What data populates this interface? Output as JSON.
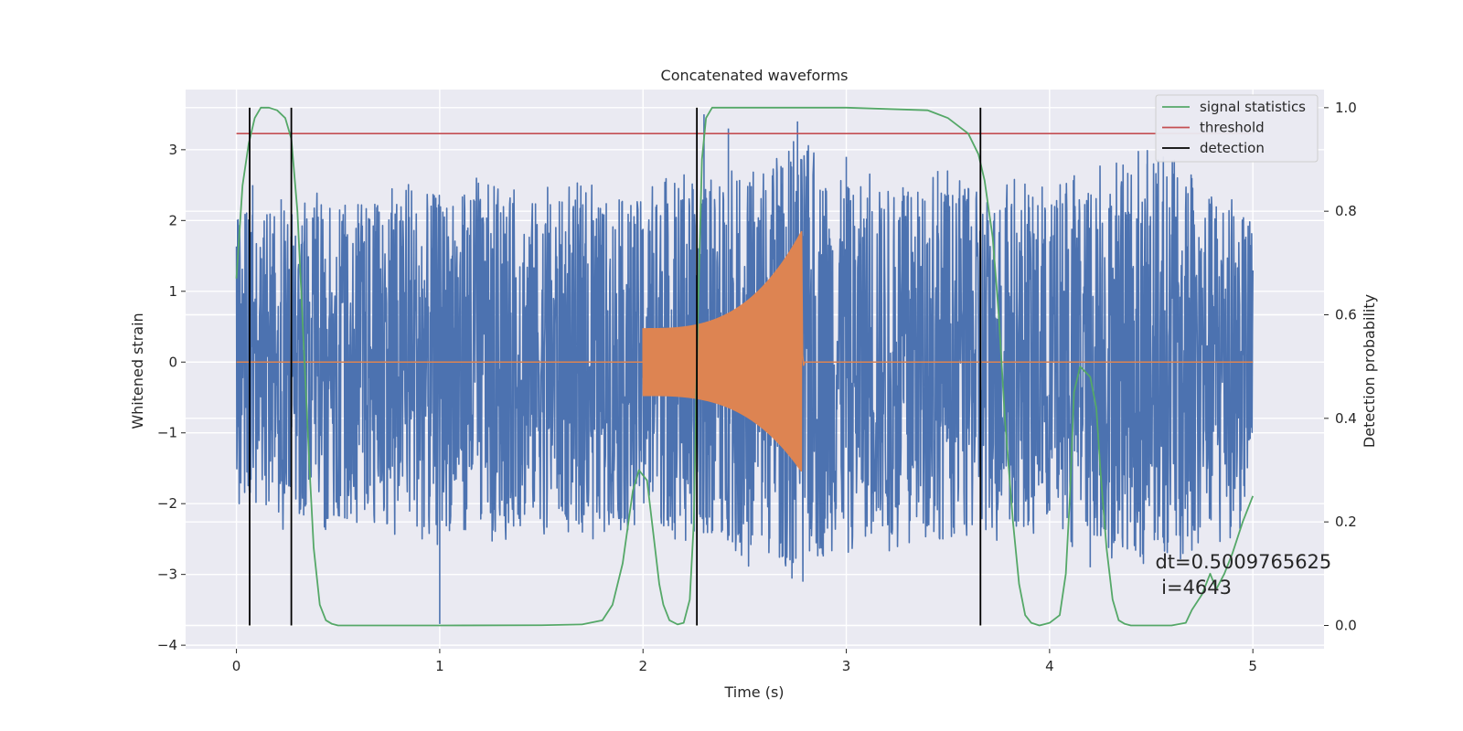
{
  "chart_data": {
    "type": "line",
    "title": "Concatenated waveforms",
    "xlabel": "Time (s)",
    "ylabel": "Whitened strain",
    "y2label": "Detection probability",
    "xlim": [
      -0.25,
      5.35
    ],
    "ylim": [
      -4.05,
      3.85
    ],
    "y2lim": [
      -0.045,
      1.035
    ],
    "xticks": [
      "0",
      "1",
      "2",
      "3",
      "4",
      "5"
    ],
    "xtick_values": [
      0,
      1,
      2,
      3,
      4,
      5
    ],
    "yticks": [
      "−4",
      "−3",
      "−2",
      "−1",
      "0",
      "1",
      "2",
      "3"
    ],
    "ytick_values": [
      -4,
      -3,
      -2,
      -1,
      0,
      1,
      2,
      3
    ],
    "y2ticks": [
      "0.0",
      "0.2",
      "0.4",
      "0.6",
      "0.8",
      "1.0"
    ],
    "y2tick_values": [
      0,
      0.2,
      0.4,
      0.6,
      0.8,
      1.0
    ],
    "grid": true,
    "legend_position": "top-right",
    "colors": {
      "background": "#eaeaf2",
      "noise": "#4c72b0",
      "waveform": "#dd8452",
      "signal_statistics": "#55a868",
      "threshold": "#c44e52",
      "detection": "#000000"
    },
    "series": [
      {
        "name": "noise (whitened strain)",
        "axis": "left",
        "style": "noise",
        "x_range": [
          0,
          5
        ],
        "envelope": [
          [
            0,
            2.1
          ],
          [
            0.5,
            2.2
          ],
          [
            1,
            2.4
          ],
          [
            1.5,
            2.3
          ],
          [
            2,
            2.3
          ],
          [
            2.5,
            2.6
          ],
          [
            2.8,
            3.0
          ],
          [
            3,
            2.5
          ],
          [
            3.5,
            2.5
          ],
          [
            4,
            2.3
          ],
          [
            4.5,
            2.8
          ],
          [
            5,
            2.1
          ]
        ],
        "peaks": [
          [
            0.08,
            2.5
          ],
          [
            0.22,
            2.3
          ],
          [
            1.0,
            -3.7
          ],
          [
            2.3,
            3.5
          ],
          [
            2.42,
            3.3
          ],
          [
            2.76,
            3.4
          ],
          [
            3.0,
            2.9
          ],
          [
            3.45,
            2.7
          ],
          [
            4.2,
            -2.9
          ],
          [
            4.48,
            2.8
          ],
          [
            4.7,
            2.6
          ],
          [
            4.82,
            2.2
          ]
        ]
      },
      {
        "name": "waveform",
        "axis": "left",
        "style": "chirp",
        "x_range": [
          0,
          5
        ],
        "chirp_start": 2.0,
        "chirp_end": 2.78,
        "amplitude_start": 0.48,
        "amplitude_peak": 1.85,
        "amplitude_min_peak": -1.55
      },
      {
        "name": "signal statistics",
        "axis": "right",
        "x": [
          0,
          0.03,
          0.06,
          0.09,
          0.12,
          0.16,
          0.2,
          0.24,
          0.27,
          0.3,
          0.33,
          0.36,
          0.38,
          0.41,
          0.44,
          0.47,
          0.5,
          0.6,
          1.0,
          1.5,
          1.7,
          1.8,
          1.85,
          1.9,
          1.95,
          1.98,
          2.02,
          2.05,
          2.08,
          2.1,
          2.13,
          2.17,
          2.2,
          2.23,
          2.25,
          2.27,
          2.29,
          2.31,
          2.34,
          2.4,
          2.6,
          3.0,
          3.4,
          3.5,
          3.55,
          3.6,
          3.65,
          3.68,
          3.72,
          3.75,
          3.78,
          3.82,
          3.85,
          3.88,
          3.91,
          3.95,
          4.0,
          4.05,
          4.08,
          4.1,
          4.12,
          4.15,
          4.2,
          4.23,
          4.25,
          4.28,
          4.31,
          4.34,
          4.37,
          4.4,
          4.45,
          4.6,
          4.67,
          4.7,
          4.75,
          4.79,
          4.82,
          4.86,
          4.9,
          4.95,
          5.0
        ],
        "y": [
          0.67,
          0.85,
          0.93,
          0.98,
          1.0,
          1.0,
          0.995,
          0.98,
          0.94,
          0.8,
          0.55,
          0.3,
          0.15,
          0.04,
          0.01,
          0.003,
          0.0,
          0.0,
          0.0,
          0.0005,
          0.002,
          0.01,
          0.04,
          0.12,
          0.26,
          0.3,
          0.28,
          0.18,
          0.08,
          0.04,
          0.01,
          0.002,
          0.005,
          0.05,
          0.2,
          0.6,
          0.9,
          0.98,
          1.0,
          1.0,
          1.0,
          1.0,
          0.995,
          0.98,
          0.965,
          0.95,
          0.91,
          0.86,
          0.75,
          0.6,
          0.4,
          0.2,
          0.08,
          0.02,
          0.005,
          0.0,
          0.005,
          0.02,
          0.1,
          0.25,
          0.45,
          0.5,
          0.48,
          0.42,
          0.3,
          0.15,
          0.05,
          0.01,
          0.003,
          0.0,
          0.0,
          0.0,
          0.005,
          0.03,
          0.06,
          0.1,
          0.07,
          0.1,
          0.14,
          0.2,
          0.25
        ]
      },
      {
        "name": "threshold",
        "axis": "right",
        "x": [
          0,
          5
        ],
        "y": [
          0.95,
          0.95
        ]
      },
      {
        "name": "detection",
        "axis": "right",
        "vlines_x": [
          0.065,
          0.27,
          2.265,
          3.66
        ],
        "y_range": [
          0,
          1
        ]
      }
    ],
    "legend": [
      {
        "label": "signal statistics",
        "color": "#55a868"
      },
      {
        "label": "threshold",
        "color": "#c44e52"
      },
      {
        "label": "detection",
        "color": "#000000"
      }
    ],
    "annotation": {
      "line1": "dt=0.5009765625",
      "line2": " i=4643",
      "x": 4.52,
      "y2": 0.11
    }
  }
}
